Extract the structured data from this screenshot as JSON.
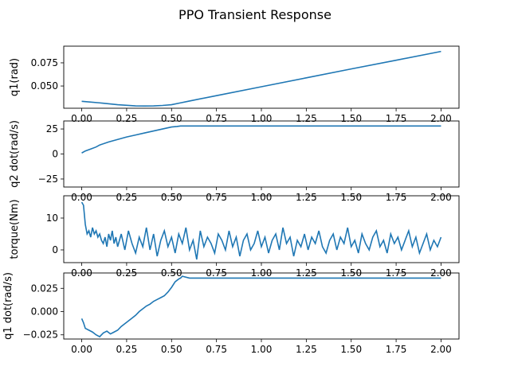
{
  "figure": {
    "title": "PPO Transient Response",
    "line_color": "#1f77b4"
  },
  "chart_data": [
    {
      "type": "line",
      "ylabel": "q1(rad)",
      "xlim": [
        -0.1,
        2.1
      ],
      "ylim": [
        0.026,
        0.093
      ],
      "xticks": [
        "0.00",
        "0.25",
        "0.50",
        "0.75",
        "1.00",
        "1.25",
        "1.50",
        "1.75",
        "2.00"
      ],
      "yticks": [
        "0.050",
        "0.075"
      ],
      "series": [
        {
          "x": [
            0.0,
            0.1,
            0.2,
            0.3,
            0.35,
            0.4,
            0.45,
            0.5,
            0.55,
            0.6,
            0.75,
            1.0,
            1.25,
            1.5,
            1.75,
            2.0
          ],
          "y": [
            0.0335,
            0.0318,
            0.0298,
            0.0285,
            0.0284,
            0.0285,
            0.029,
            0.0298,
            0.0318,
            0.0338,
            0.0396,
            0.0492,
            0.0588,
            0.0684,
            0.0778,
            0.0873
          ]
        }
      ]
    },
    {
      "type": "line",
      "ylabel": "q2 dot(rad/s)",
      "xlim": [
        -0.1,
        2.1
      ],
      "ylim": [
        -33,
        33
      ],
      "xticks": [
        "0.00",
        "0.25",
        "0.50",
        "0.75",
        "1.00",
        "1.25",
        "1.50",
        "1.75",
        "2.00"
      ],
      "yticks": [
        "-25",
        "0",
        "25"
      ],
      "series": [
        {
          "x": [
            0.0,
            0.02,
            0.05,
            0.08,
            0.1,
            0.15,
            0.2,
            0.25,
            0.3,
            0.35,
            0.4,
            0.45,
            0.5,
            0.53,
            0.55,
            0.6,
            1.0,
            1.5,
            2.0
          ],
          "y": [
            1,
            3,
            5,
            7,
            9,
            12,
            14.5,
            17,
            19,
            21,
            23,
            25,
            27,
            27.5,
            28,
            28,
            28,
            28,
            28
          ]
        }
      ]
    },
    {
      "type": "line",
      "ylabel": "torque(Nm)",
      "xlim": [
        -0.1,
        2.1
      ],
      "ylim": [
        -4,
        17
      ],
      "xticks": [
        "0.00",
        "0.25",
        "0.50",
        "0.75",
        "1.00",
        "1.25",
        "1.50",
        "1.75",
        "2.00"
      ],
      "yticks": [
        "0",
        "10"
      ],
      "series": [
        {
          "x": [
            0.0,
            0.01,
            0.02,
            0.03,
            0.04,
            0.05,
            0.06,
            0.07,
            0.08,
            0.09,
            0.1,
            0.11,
            0.12,
            0.13,
            0.14,
            0.15,
            0.16,
            0.17,
            0.18,
            0.19,
            0.2,
            0.22,
            0.24,
            0.26,
            0.28,
            0.3,
            0.32,
            0.34,
            0.36,
            0.38,
            0.4,
            0.42,
            0.44,
            0.46,
            0.48,
            0.5,
            0.52,
            0.54,
            0.56,
            0.58,
            0.6,
            0.62,
            0.64,
            0.66,
            0.68,
            0.7,
            0.72,
            0.74,
            0.76,
            0.78,
            0.8,
            0.82,
            0.84,
            0.86,
            0.88,
            0.9,
            0.92,
            0.94,
            0.96,
            0.98,
            1.0,
            1.02,
            1.04,
            1.06,
            1.08,
            1.1,
            1.12,
            1.14,
            1.16,
            1.18,
            1.2,
            1.22,
            1.24,
            1.26,
            1.28,
            1.3,
            1.32,
            1.34,
            1.36,
            1.38,
            1.4,
            1.42,
            1.44,
            1.46,
            1.48,
            1.5,
            1.52,
            1.54,
            1.56,
            1.58,
            1.6,
            1.62,
            1.64,
            1.66,
            1.68,
            1.7,
            1.72,
            1.74,
            1.76,
            1.78,
            1.8,
            1.82,
            1.84,
            1.86,
            1.88,
            1.9,
            1.92,
            1.94,
            1.96,
            1.98,
            2.0
          ],
          "y": [
            15,
            14,
            8,
            5,
            6,
            4,
            7,
            5,
            6,
            4,
            5,
            3,
            2,
            4,
            1,
            5,
            3,
            6,
            2,
            4,
            1,
            5,
            0,
            6,
            2,
            -1,
            4,
            1,
            7,
            0,
            5,
            -2,
            3,
            6,
            1,
            4,
            -1,
            5,
            2,
            7,
            0,
            3,
            -3,
            6,
            1,
            4,
            2,
            -1,
            5,
            3,
            0,
            6,
            1,
            4,
            -2,
            3,
            5,
            0,
            2,
            6,
            1,
            4,
            -1,
            3,
            5,
            0,
            7,
            2,
            4,
            -2,
            3,
            1,
            5,
            0,
            4,
            2,
            6,
            1,
            -1,
            3,
            5,
            0,
            4,
            2,
            7,
            1,
            3,
            -1,
            5,
            2,
            0,
            4,
            6,
            1,
            3,
            -1,
            5,
            2,
            4,
            0,
            3,
            6,
            1,
            4,
            -1,
            2,
            5,
            0,
            3,
            1,
            4
          ]
        }
      ]
    },
    {
      "type": "line",
      "ylabel": "q1 dot(rad/s)",
      "xlim": [
        -0.1,
        2.1
      ],
      "ylim": [
        -0.0295,
        0.0415
      ],
      "xticks": [
        "0.00",
        "0.25",
        "0.50",
        "0.75",
        "1.00",
        "1.25",
        "1.50",
        "1.75",
        "2.00"
      ],
      "yticks": [
        "-0.025",
        "0.000",
        "0.025"
      ],
      "series": [
        {
          "x": [
            0.0,
            0.01,
            0.02,
            0.04,
            0.06,
            0.08,
            0.1,
            0.12,
            0.14,
            0.16,
            0.18,
            0.2,
            0.22,
            0.24,
            0.26,
            0.28,
            0.3,
            0.32,
            0.34,
            0.36,
            0.38,
            0.4,
            0.42,
            0.44,
            0.46,
            0.48,
            0.5,
            0.52,
            0.54,
            0.55,
            0.56,
            0.6,
            1.0,
            1.5,
            2.0
          ],
          "y": [
            -0.0075,
            -0.012,
            -0.018,
            -0.02,
            -0.022,
            -0.025,
            -0.027,
            -0.023,
            -0.021,
            -0.024,
            -0.022,
            -0.02,
            -0.016,
            -0.013,
            -0.01,
            -0.007,
            -0.004,
            0.0,
            0.003,
            0.006,
            0.008,
            0.011,
            0.013,
            0.015,
            0.017,
            0.021,
            0.026,
            0.032,
            0.035,
            0.036,
            0.038,
            0.036,
            0.036,
            0.036,
            0.036
          ]
        }
      ]
    }
  ]
}
